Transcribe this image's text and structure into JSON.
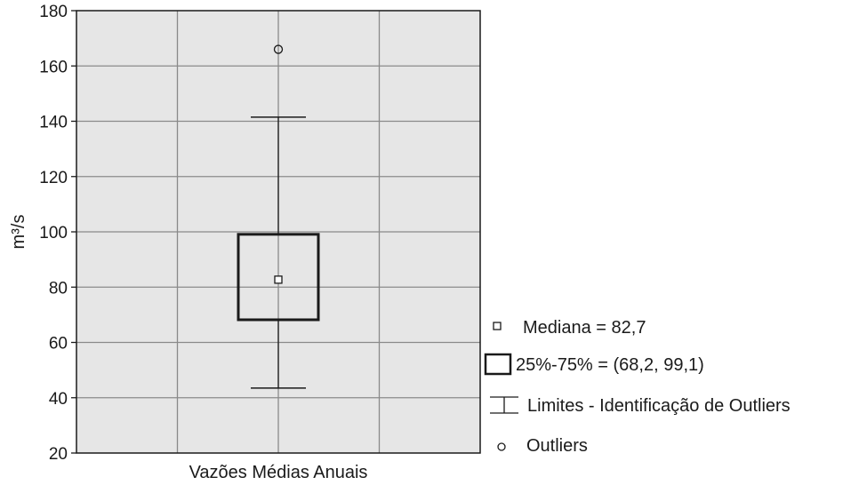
{
  "chart_data": {
    "type": "box",
    "title": "",
    "xlabel": "",
    "ylabel": "m³/s",
    "ylim": [
      20,
      180
    ],
    "yticks": [
      "20",
      "40",
      "60",
      "80",
      "100",
      "120",
      "140",
      "160",
      "180"
    ],
    "grid": true,
    "categories": [
      "Vazões Médias Anuais"
    ],
    "box": {
      "median": 82.7,
      "q1": 68.2,
      "q3": 99.1,
      "whisker_low": 43.5,
      "whisker_high": 141.5,
      "outliers": [
        166
      ]
    },
    "legend": {
      "position": "right",
      "items": [
        {
          "symbol": "median-square",
          "label": "Mediana = 82,7"
        },
        {
          "symbol": "box",
          "label": "25%-75% = (68,2, 99,1)"
        },
        {
          "symbol": "whisker",
          "label": "Limites - Identificação de Outliers"
        },
        {
          "symbol": "outlier-circle",
          "label": "Outliers"
        }
      ]
    },
    "colors": {
      "plot_background": "#e6e6e6",
      "grid": "#8a8a8a",
      "ink": "#1a1a1a"
    }
  }
}
